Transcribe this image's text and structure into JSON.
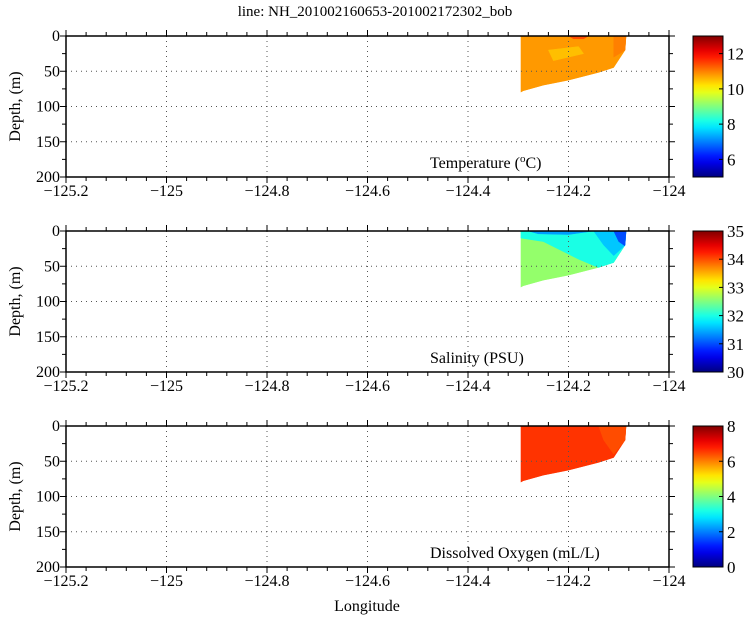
{
  "title": "line: NH_201002160653-201002172302_bob",
  "xlabel": "Longitude",
  "chart_data": [
    {
      "type": "heatmap",
      "panel_label": "Temperature (",
      "panel_label_sup": "o",
      "panel_label_end": "C)",
      "ylabel": "Depth, (m)",
      "xlim": [
        -125.2,
        -124.0
      ],
      "ylim": [
        0,
        200
      ],
      "xticks": [
        -125.2,
        -125,
        -124.8,
        -124.6,
        -124.4,
        -124.2,
        -124
      ],
      "xtick_labels": [
        "−125.2",
        "−125",
        "−124.8",
        "−124.6",
        "−124.4",
        "−124.2",
        "−124"
      ],
      "yticks": [
        0,
        50,
        100,
        150,
        200
      ],
      "ytick_labels": [
        "0",
        "50",
        "100",
        "150",
        "200"
      ],
      "clim": [
        5,
        13
      ],
      "cticks": [
        6,
        8,
        10,
        12
      ],
      "ctick_labels": [
        "6",
        "8",
        "10",
        "12"
      ],
      "grid": true,
      "section": {
        "outline": [
          [
            -124.295,
            0
          ],
          [
            -124.085,
            0
          ],
          [
            -124.087,
            20
          ],
          [
            -124.11,
            45
          ],
          [
            -124.14,
            52
          ],
          [
            -124.2,
            63
          ],
          [
            -124.25,
            70
          ],
          [
            -124.29,
            78
          ],
          [
            -124.295,
            80
          ]
        ],
        "regions": [
          {
            "value": 10.8,
            "poly": [
              [
                -124.295,
                0
              ],
              [
                -124.085,
                0
              ],
              [
                -124.087,
                20
              ],
              [
                -124.11,
                45
              ],
              [
                -124.14,
                52
              ],
              [
                -124.2,
                63
              ],
              [
                -124.25,
                70
              ],
              [
                -124.29,
                78
              ],
              [
                -124.295,
                80
              ]
            ]
          },
          {
            "value": 11.0,
            "poly": [
              [
                -124.11,
                0
              ],
              [
                -124.085,
                0
              ],
              [
                -124.087,
                20
              ],
              [
                -124.11,
                30
              ]
            ]
          },
          {
            "value": 11.4,
            "poly": [
              [
                -124.2,
                0
              ],
              [
                -124.16,
                0
              ],
              [
                -124.17,
                4
              ],
              [
                -124.19,
                4
              ]
            ]
          },
          {
            "value": 10.5,
            "poly": [
              [
                -124.24,
                20
              ],
              [
                -124.18,
                15
              ],
              [
                -124.17,
                25
              ],
              [
                -124.23,
                35
              ]
            ]
          }
        ]
      }
    },
    {
      "type": "heatmap",
      "panel_label": "Salinity (PSU)",
      "ylabel": "Depth, (m)",
      "xlim": [
        -125.2,
        -124.0
      ],
      "ylim": [
        0,
        200
      ],
      "xticks": [
        -125.2,
        -125,
        -124.8,
        -124.6,
        -124.4,
        -124.2,
        -124
      ],
      "xtick_labels": [
        "−125.2",
        "−125",
        "−124.8",
        "−124.6",
        "−124.4",
        "−124.2",
        "−124"
      ],
      "yticks": [
        0,
        50,
        100,
        150,
        200
      ],
      "ytick_labels": [
        "0",
        "50",
        "100",
        "150",
        "200"
      ],
      "clim": [
        30,
        35
      ],
      "cticks": [
        30,
        31,
        32,
        33,
        34,
        35
      ],
      "ctick_labels": [
        "30",
        "31",
        "32",
        "33",
        "34",
        "35"
      ],
      "grid": true,
      "section": {
        "outline": [
          [
            -124.295,
            0
          ],
          [
            -124.085,
            0
          ],
          [
            -124.087,
            20
          ],
          [
            -124.11,
            45
          ],
          [
            -124.14,
            52
          ],
          [
            -124.2,
            63
          ],
          [
            -124.25,
            70
          ],
          [
            -124.29,
            78
          ],
          [
            -124.295,
            80
          ]
        ],
        "regions": [
          {
            "value": 32.6,
            "poly": [
              [
                -124.295,
                0
              ],
              [
                -124.085,
                0
              ],
              [
                -124.087,
                20
              ],
              [
                -124.11,
                45
              ],
              [
                -124.14,
                52
              ],
              [
                -124.2,
                63
              ],
              [
                -124.25,
                70
              ],
              [
                -124.29,
                78
              ],
              [
                -124.295,
                80
              ]
            ]
          },
          {
            "value": 32.0,
            "poly": [
              [
                -124.295,
                0
              ],
              [
                -124.085,
                0
              ],
              [
                -124.087,
                20
              ],
              [
                -124.11,
                45
              ],
              [
                -124.14,
                52
              ],
              [
                -124.18,
                40
              ],
              [
                -124.25,
                15
              ],
              [
                -124.295,
                10
              ]
            ]
          },
          {
            "value": 31.6,
            "poly": [
              [
                -124.15,
                0
              ],
              [
                -124.085,
                0
              ],
              [
                -124.087,
                20
              ],
              [
                -124.11,
                35
              ],
              [
                -124.13,
                20
              ]
            ]
          },
          {
            "value": 31.0,
            "poly": [
              [
                -124.11,
                0
              ],
              [
                -124.085,
                0
              ],
              [
                -124.086,
                22
              ],
              [
                -124.1,
                15
              ]
            ]
          },
          {
            "value": 31.4,
            "poly": [
              [
                -124.28,
                0
              ],
              [
                -124.15,
                0
              ],
              [
                -124.2,
                5
              ],
              [
                -124.26,
                4
              ]
            ]
          }
        ]
      }
    },
    {
      "type": "heatmap",
      "panel_label": "Dissolved Oxygen (mL/L)",
      "ylabel": "Depth, (m)",
      "xlim": [
        -125.2,
        -124.0
      ],
      "ylim": [
        0,
        200
      ],
      "xticks": [
        -125.2,
        -125,
        -124.8,
        -124.6,
        -124.4,
        -124.2,
        -124
      ],
      "xtick_labels": [
        "−125.2",
        "−125",
        "−124.8",
        "−124.6",
        "−124.4",
        "−124.2",
        "−124"
      ],
      "yticks": [
        0,
        50,
        100,
        150,
        200
      ],
      "ytick_labels": [
        "0",
        "50",
        "100",
        "150",
        "200"
      ],
      "clim": [
        0,
        8
      ],
      "cticks": [
        0,
        2,
        4,
        6,
        8
      ],
      "ctick_labels": [
        "0",
        "2",
        "4",
        "6",
        "8"
      ],
      "grid": true,
      "section": {
        "outline": [
          [
            -124.295,
            0
          ],
          [
            -124.085,
            0
          ],
          [
            -124.087,
            20
          ],
          [
            -124.11,
            45
          ],
          [
            -124.14,
            52
          ],
          [
            -124.2,
            63
          ],
          [
            -124.25,
            70
          ],
          [
            -124.29,
            78
          ],
          [
            -124.295,
            80
          ]
        ],
        "regions": [
          {
            "value": 6.6,
            "poly": [
              [
                -124.295,
                0
              ],
              [
                -124.085,
                0
              ],
              [
                -124.087,
                20
              ],
              [
                -124.11,
                45
              ],
              [
                -124.14,
                52
              ],
              [
                -124.2,
                63
              ],
              [
                -124.25,
                70
              ],
              [
                -124.29,
                78
              ],
              [
                -124.295,
                80
              ]
            ]
          },
          {
            "value": 6.4,
            "poly": [
              [
                -124.14,
                0
              ],
              [
                -124.085,
                0
              ],
              [
                -124.087,
                20
              ],
              [
                -124.11,
                40
              ],
              [
                -124.13,
                20
              ]
            ]
          }
        ]
      }
    }
  ]
}
